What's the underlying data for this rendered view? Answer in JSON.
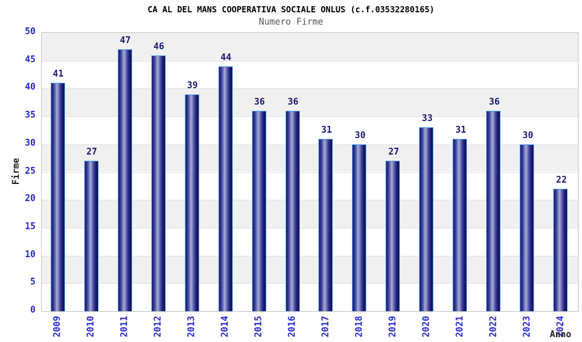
{
  "title": "CA AL DEL MANS COOPERATIVA SOCIALE ONLUS (c.f.03532280165)",
  "subtitle": "Numero Firme",
  "chart_data": {
    "type": "bar",
    "title": "Numero Firme",
    "categories": [
      "2009",
      "2010",
      "2011",
      "2012",
      "2013",
      "2014",
      "2015",
      "2016",
      "2017",
      "2018",
      "2019",
      "2020",
      "2021",
      "2022",
      "2023",
      "2024"
    ],
    "values": [
      41,
      27,
      47,
      46,
      39,
      44,
      36,
      36,
      31,
      30,
      27,
      33,
      31,
      36,
      30,
      22
    ],
    "xlabel": "Anno",
    "ylabel": "Firme",
    "ylim": [
      0,
      50
    ],
    "ytick_step": 5,
    "grid": "horizontal-bands-alternating",
    "legend_position": "none",
    "bar_value_labels": true,
    "colors": {
      "bar_dark": "#1b1b6e",
      "bar_highlight": "#a8aed9",
      "bar_border": "#4e9eeb",
      "tick_label": "#2626cc",
      "value_label": "#191970",
      "band_gray": "#f0f0f0",
      "band_white": "#ffffff",
      "gridline": "#e2e2e2",
      "plot_border": "#c9c9c9",
      "title": "#000000",
      "subtitle": "#555555",
      "axis_title": "#222222"
    }
  }
}
